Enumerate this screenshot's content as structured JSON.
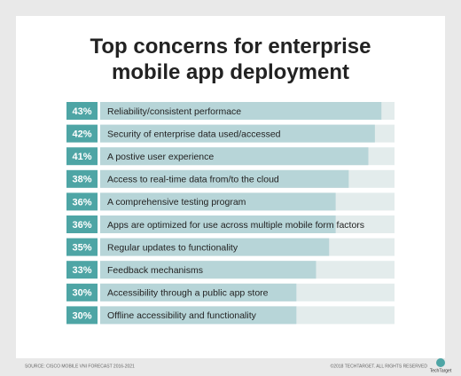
{
  "chart_data": {
    "type": "barh",
    "title": "Top concerns for enterprise mobile app deployment",
    "categories": [
      "Reliability/consistent performace",
      "Security of enterprise data used/accessed",
      "A postive user experience",
      "Access to real-time data from/to the cloud",
      "A comprehensive testing program",
      "Apps are optimized for use across multiple mobile form factors",
      "Regular updates to functionality",
      "Feedback mechanisms",
      "Accessibility through a public app store",
      "Offline accessibility and functionality"
    ],
    "values": [
      43,
      42,
      41,
      38,
      36,
      36,
      35,
      33,
      30,
      30
    ],
    "value_labels": [
      "43%",
      "42%",
      "41%",
      "38%",
      "36%",
      "36%",
      "35%",
      "33%",
      "30%",
      "30%"
    ],
    "xlim": [
      0,
      45
    ],
    "color": "#b7d5d8",
    "track_color": "#e3ecec",
    "label_color": "#4ea5a5",
    "source": "SOURCE: CISCO MOBILE VNI FORECAST 2016-2021",
    "copyright": "©2018 TECHTARGET. ALL RIGHTS RESERVED",
    "logo": "TechTarget"
  }
}
